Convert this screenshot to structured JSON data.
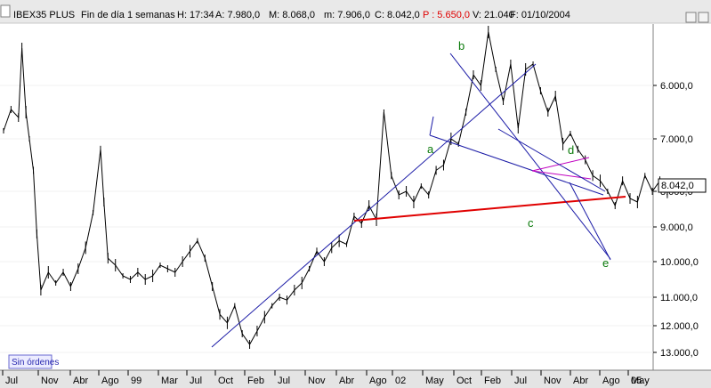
{
  "header": {
    "symbol": "IBEX35 PLUS",
    "period": "Fin de día 1 semanas",
    "H": "H: 17:34",
    "A": "A: 7.980,0",
    "M": "M: 8.068,0",
    "m": "m: 7.906,0",
    "C": "C: 8.042,0",
    "P": "P : 5.650,0",
    "V": "V: 21.040",
    "date": "F: 01/10/2004"
  },
  "colors": {
    "background": "#ffffff",
    "price": "#000000",
    "trend_blue": "#1a1aa6",
    "support_red": "#e00000",
    "wave_label": "#0a7a0a",
    "header_bg": "#e9e9e9",
    "axis_bg": "#e4e4e4",
    "status_text": "#2a2ab0"
  },
  "status_box": {
    "label": "Sin órdenes"
  },
  "chart_data": {
    "type": "ohlc",
    "title": "IBEX35 PLUS",
    "y_axis": {
      "inverted": true,
      "ticks": [
        "6.000,0",
        "7.000,0",
        "8.000,0",
        "9.000,0",
        "10.000,0",
        "11.000,0",
        "12.000,0",
        "13.000,0"
      ],
      "ylim": [
        13300,
        5000
      ]
    },
    "x_axis": {
      "ticks": [
        "Jul",
        "Nov",
        "Abr",
        "Ago",
        "99",
        "Mar",
        "Jul",
        "Oct",
        "Feb",
        "Jul",
        "Nov",
        "Abr",
        "Ago",
        "02",
        "May",
        "Oct",
        "Feb",
        "Jul",
        "Nov",
        "Abr",
        "Ago",
        "05",
        "May"
      ],
      "xlim": [
        "1998-06",
        "2005-06"
      ]
    },
    "last_value": "8.042,0",
    "price": [
      {
        "x": "1998-06",
        "y": 6850
      },
      {
        "x": "1998-07",
        "y": 6450
      },
      {
        "x": "1998-08",
        "y": 6600
      },
      {
        "x": "1998-08-15",
        "y": 5300
      },
      {
        "x": "1998-09",
        "y": 6500
      },
      {
        "x": "1998-09-15",
        "y": 7000
      },
      {
        "x": "1998-10",
        "y": 7600
      },
      {
        "x": "1998-10-15",
        "y": 9200
      },
      {
        "x": "1998-11",
        "y": 10800
      },
      {
        "x": "1998-12",
        "y": 10300
      },
      {
        "x": "1999-01",
        "y": 10600
      },
      {
        "x": "1999-02",
        "y": 10300
      },
      {
        "x": "1999-03",
        "y": 10700
      },
      {
        "x": "1999-04",
        "y": 10200
      },
      {
        "x": "1999-05",
        "y": 9600
      },
      {
        "x": "1999-06",
        "y": 8600
      },
      {
        "x": "1999-07",
        "y": 7200
      },
      {
        "x": "1999-07-15",
        "y": 8300
      },
      {
        "x": "1999-08",
        "y": 9900
      },
      {
        "x": "1999-09",
        "y": 10100
      },
      {
        "x": "1999-10",
        "y": 10400
      },
      {
        "x": "1999-11",
        "y": 10500
      },
      {
        "x": "1999-12",
        "y": 10300
      },
      {
        "x": "2000-01",
        "y": 10500
      },
      {
        "x": "2000-02",
        "y": 10400
      },
      {
        "x": "2000-03",
        "y": 10100
      },
      {
        "x": "2000-04",
        "y": 10200
      },
      {
        "x": "2000-05",
        "y": 10300
      },
      {
        "x": "2000-06",
        "y": 10000
      },
      {
        "x": "2000-07",
        "y": 9700
      },
      {
        "x": "2000-08",
        "y": 9400
      },
      {
        "x": "2000-09",
        "y": 9900
      },
      {
        "x": "2000-10",
        "y": 10700
      },
      {
        "x": "2000-11",
        "y": 11600
      },
      {
        "x": "2000-12",
        "y": 11900
      },
      {
        "x": "2001-01",
        "y": 11300
      },
      {
        "x": "2001-02",
        "y": 12300
      },
      {
        "x": "2001-03",
        "y": 12700
      },
      {
        "x": "2001-04",
        "y": 12200
      },
      {
        "x": "2001-05",
        "y": 11700
      },
      {
        "x": "2001-06",
        "y": 11300
      },
      {
        "x": "2001-07",
        "y": 11000
      },
      {
        "x": "2001-08",
        "y": 11100
      },
      {
        "x": "2001-09",
        "y": 10800
      },
      {
        "x": "2001-10",
        "y": 10600
      },
      {
        "x": "2001-11",
        "y": 10200
      },
      {
        "x": "2001-12",
        "y": 9700
      },
      {
        "x": "2002-01",
        "y": 10000
      },
      {
        "x": "2002-02",
        "y": 9600
      },
      {
        "x": "2002-03",
        "y": 9400
      },
      {
        "x": "2002-04",
        "y": 9500
      },
      {
        "x": "2002-05",
        "y": 8700
      },
      {
        "x": "2002-06",
        "y": 8900
      },
      {
        "x": "2002-07",
        "y": 8400
      },
      {
        "x": "2002-08",
        "y": 8800
      },
      {
        "x": "2002-09",
        "y": 6500
      },
      {
        "x": "2002-10",
        "y": 7700
      },
      {
        "x": "2002-11",
        "y": 8100
      },
      {
        "x": "2002-12",
        "y": 8000
      },
      {
        "x": "2003-01",
        "y": 8300
      },
      {
        "x": "2003-02",
        "y": 7900
      },
      {
        "x": "2003-03",
        "y": 8100
      },
      {
        "x": "2003-04",
        "y": 7600
      },
      {
        "x": "2003-05",
        "y": 7500
      },
      {
        "x": "2003-06",
        "y": 7000
      },
      {
        "x": "2003-07",
        "y": 7100
      },
      {
        "x": "2003-08",
        "y": 6500
      },
      {
        "x": "2003-09",
        "y": 5800
      },
      {
        "x": "2003-10",
        "y": 6000
      },
      {
        "x": "2003-11",
        "y": 5000
      },
      {
        "x": "2003-12",
        "y": 5700
      },
      {
        "x": "2004-01",
        "y": 6300
      },
      {
        "x": "2004-02",
        "y": 5600
      },
      {
        "x": "2004-03",
        "y": 6800
      },
      {
        "x": "2004-04",
        "y": 5700
      },
      {
        "x": "2004-05",
        "y": 5600
      },
      {
        "x": "2004-06",
        "y": 6100
      },
      {
        "x": "2004-07",
        "y": 6500
      },
      {
        "x": "2004-08",
        "y": 6200
      },
      {
        "x": "2004-09",
        "y": 7100
      },
      {
        "x": "2004-10",
        "y": 6900
      },
      {
        "x": "2004-11",
        "y": 7200
      },
      {
        "x": "2004-12",
        "y": 7400
      },
      {
        "x": "2005-01",
        "y": 7700
      },
      {
        "x": "2005-02",
        "y": 7800
      },
      {
        "x": "2005-03",
        "y": 8000
      },
      {
        "x": "2005-04",
        "y": 8400
      },
      {
        "x": "2005-05",
        "y": 7800
      },
      {
        "x": "2005-06",
        "y": 8200
      },
      {
        "x": "2005-07",
        "y": 8300
      },
      {
        "x": "2005-08",
        "y": 7700
      },
      {
        "x": "2005-09",
        "y": 8000
      },
      {
        "x": "2005-10",
        "y": 7800
      },
      {
        "x": "2005-11",
        "y": 8042
      }
    ],
    "wave_labels": [
      {
        "text": "a",
        "x": "2003-12",
        "y": 7200
      },
      {
        "text": "b",
        "x": "2004-01",
        "y": 5300
      },
      {
        "text": "c",
        "x": "2005-06",
        "y": 9000
      },
      {
        "text": "d",
        "x": "2005-12",
        "y": 7200
      },
      {
        "text": "e",
        "x": "2006-02",
        "y": 10000
      }
    ]
  }
}
